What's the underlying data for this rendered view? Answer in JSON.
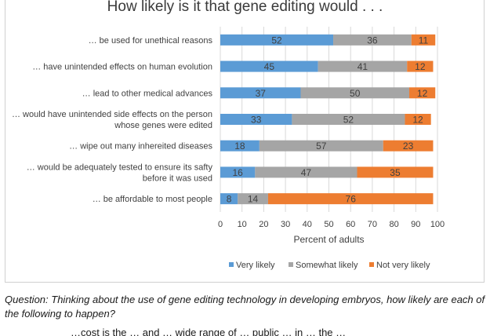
{
  "chart_data": {
    "type": "bar",
    "stacked": true,
    "orientation": "horizontal",
    "title": "How likely is it that gene editing would . . .",
    "categories": [
      "… be used for unethical reasons",
      "… have unintended effects on human evolution",
      "… lead to other medical advances",
      "… would have unintended side effects on the person whose genes were edited",
      "… wipe out many inhereited diseases",
      "… would be adequately tested to ensure its safty before it was used",
      "… be affordable to most people"
    ],
    "category_lines": [
      [
        "… be used for unethical reasons"
      ],
      [
        "… have unintended effects on human evolution"
      ],
      [
        "… lead to other medical advances"
      ],
      [
        "… would have unintended side effects on the person",
        "whose genes were edited"
      ],
      [
        "… wipe out many inhereited diseases"
      ],
      [
        "… would be adequately tested to ensure its safty",
        "before it was used"
      ],
      [
        "… be affordable to most people"
      ]
    ],
    "series": [
      {
        "name": "Very likely",
        "color": "#5b9bd5",
        "values": [
          52,
          45,
          37,
          33,
          18,
          16,
          8
        ]
      },
      {
        "name": "Somewhat likely",
        "color": "#a5a5a5",
        "values": [
          36,
          41,
          50,
          52,
          57,
          47,
          14
        ]
      },
      {
        "name": "Not very likely",
        "color": "#ed7d31",
        "values": [
          11,
          12,
          12,
          12,
          23,
          35,
          76
        ]
      }
    ],
    "xlabel": "Percent of adults",
    "xlim": [
      0,
      100
    ],
    "xticks": [
      0,
      10,
      20,
      30,
      40,
      50,
      60,
      70,
      80,
      90,
      100
    ],
    "legend_position": "bottom",
    "grid": true
  },
  "question": "Question: Thinking about the use of gene editing technology in developing embryos, how likely are each of the following to happen?",
  "trailing_text": "…cost is the … and … wide range of … public … in … the …"
}
